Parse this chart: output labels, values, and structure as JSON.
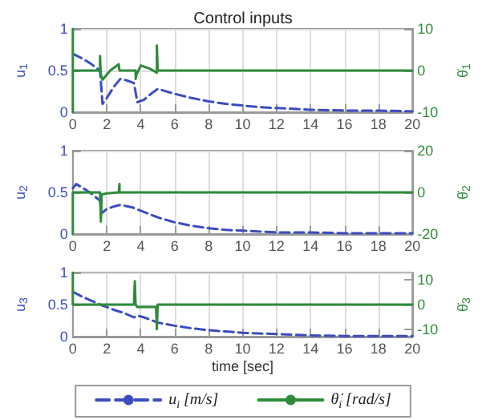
{
  "chart_data": [
    {
      "type": "line",
      "title": "Control inputs",
      "ylabel": "u$_{1}$",
      "y2label": "θ̇$_{1}$",
      "xlim": [
        0,
        20
      ],
      "xticks": [
        0,
        2,
        4,
        6,
        8,
        10,
        12,
        14,
        16,
        18,
        20
      ],
      "ylim": [
        0,
        1
      ],
      "yticks": [
        0,
        0.5,
        1
      ],
      "y2lim": [
        -10,
        10
      ],
      "y2ticks": [
        -10,
        0,
        10
      ],
      "grid": true,
      "legend": false,
      "marker": "none",
      "series": [
        {
          "color": "#3b4cc0",
          "line_style": "dashed",
          "x": [
            0,
            0.5,
            1,
            1.6,
            1.75,
            2,
            2.4,
            2.8,
            3.2,
            3.6,
            3.8,
            4.2,
            4.6,
            5,
            6,
            7,
            8,
            9,
            10,
            11,
            12,
            14,
            16,
            18,
            20
          ],
          "values": [
            0.7,
            0.65,
            0.59,
            0.5,
            0.1,
            0.17,
            0.3,
            0.4,
            0.38,
            0.35,
            0.12,
            0.15,
            0.22,
            0.28,
            0.22,
            0.17,
            0.13,
            0.1,
            0.08,
            0.06,
            0.05,
            0.03,
            0.02,
            0.02,
            0.01
          ]
        },
        {
          "color": "#2e8b3a",
          "line_style": "solid",
          "axis": "y2",
          "x": [
            0,
            0,
            0,
            1.6,
            1.6,
            1.65,
            1.65,
            1.75,
            2.2,
            2.7,
            2.75,
            2.75,
            3.7,
            3.7,
            3.75,
            4.0,
            4.5,
            4.95,
            4.95,
            5.0,
            5.0,
            20
          ],
          "values": [
            -10,
            10,
            0,
            0,
            3.5,
            3.5,
            -1,
            -2.2,
            0,
            1.5,
            1.5,
            0,
            0,
            -2,
            -1,
            1.2,
            0.5,
            -0.5,
            6,
            6,
            0,
            0
          ]
        }
      ]
    },
    {
      "type": "line",
      "ylabel": "u$_{2}$",
      "y2label": "θ̇$_{2}$",
      "xlim": [
        0,
        20
      ],
      "xticks": [
        0,
        2,
        4,
        6,
        8,
        10,
        12,
        14,
        16,
        18,
        20
      ],
      "ylim": [
        0,
        1
      ],
      "yticks": [
        0,
        0.5,
        1
      ],
      "y2lim": [
        -20,
        20
      ],
      "y2ticks": [
        -20,
        0,
        20
      ],
      "grid": true,
      "legend": false,
      "marker": "none",
      "series": [
        {
          "color": "#3b4cc0",
          "line_style": "dashed",
          "x": [
            0,
            0.2,
            0.6,
            1,
            1.6,
            1.7,
            2,
            2.4,
            2.8,
            3.5,
            4,
            5,
            6,
            7,
            8,
            9,
            10,
            12,
            14,
            16,
            18,
            20
          ],
          "values": [
            0.55,
            0.6,
            0.55,
            0.5,
            0.4,
            0.25,
            0.3,
            0.33,
            0.35,
            0.32,
            0.28,
            0.2,
            0.14,
            0.1,
            0.07,
            0.05,
            0.04,
            0.02,
            0.02,
            0.01,
            0.01,
            0.01
          ]
        },
        {
          "color": "#2e8b3a",
          "line_style": "solid",
          "axis": "y2",
          "x": [
            0,
            0,
            1.6,
            1.65,
            1.7,
            2.0,
            2.7,
            2.75,
            2.75,
            20
          ],
          "values": [
            -20,
            0,
            0,
            -14,
            -1,
            -0.5,
            0,
            4,
            0,
            0
          ]
        }
      ]
    },
    {
      "type": "line",
      "xlabel": "time [sec]",
      "ylabel": "u$_{3}$",
      "y2label": "θ̇$_{3}$",
      "xlim": [
        0,
        20
      ],
      "xticks": [
        0,
        2,
        4,
        6,
        8,
        10,
        12,
        14,
        16,
        18,
        20
      ],
      "ylim": [
        0,
        1
      ],
      "yticks": [
        0,
        0.5,
        1
      ],
      "y2lim": [
        -13,
        13
      ],
      "y2ticks": [
        -10,
        0,
        10
      ],
      "grid": true,
      "legend": "bottom",
      "marker": "none",
      "series": [
        {
          "name": "u$_{i}$ [m/s]",
          "color": "#3b4cc0",
          "line_style": "dashed",
          "x": [
            0,
            0.5,
            1,
            1.6,
            2,
            2.5,
            3,
            3.6,
            3.8,
            4.2,
            5,
            6,
            7,
            8,
            9,
            10,
            11,
            12,
            14,
            16,
            18,
            20
          ],
          "values": [
            0.7,
            0.63,
            0.57,
            0.5,
            0.46,
            0.41,
            0.37,
            0.3,
            0.33,
            0.3,
            0.22,
            0.17,
            0.13,
            0.1,
            0.08,
            0.06,
            0.05,
            0.04,
            0.02,
            0.01,
            0.01,
            0.01
          ]
        },
        {
          "name": "θ̇$_{i}$ [rad/s]",
          "color": "#2e8b3a",
          "line_style": "solid",
          "axis": "y2",
          "x": [
            0,
            0,
            3.6,
            3.65,
            3.7,
            3.8,
            4.9,
            4.95,
            5.0,
            20
          ],
          "values": [
            13,
            0,
            0,
            9.5,
            0,
            -1,
            -1,
            -10,
            0,
            0
          ]
        }
      ]
    }
  ]
}
